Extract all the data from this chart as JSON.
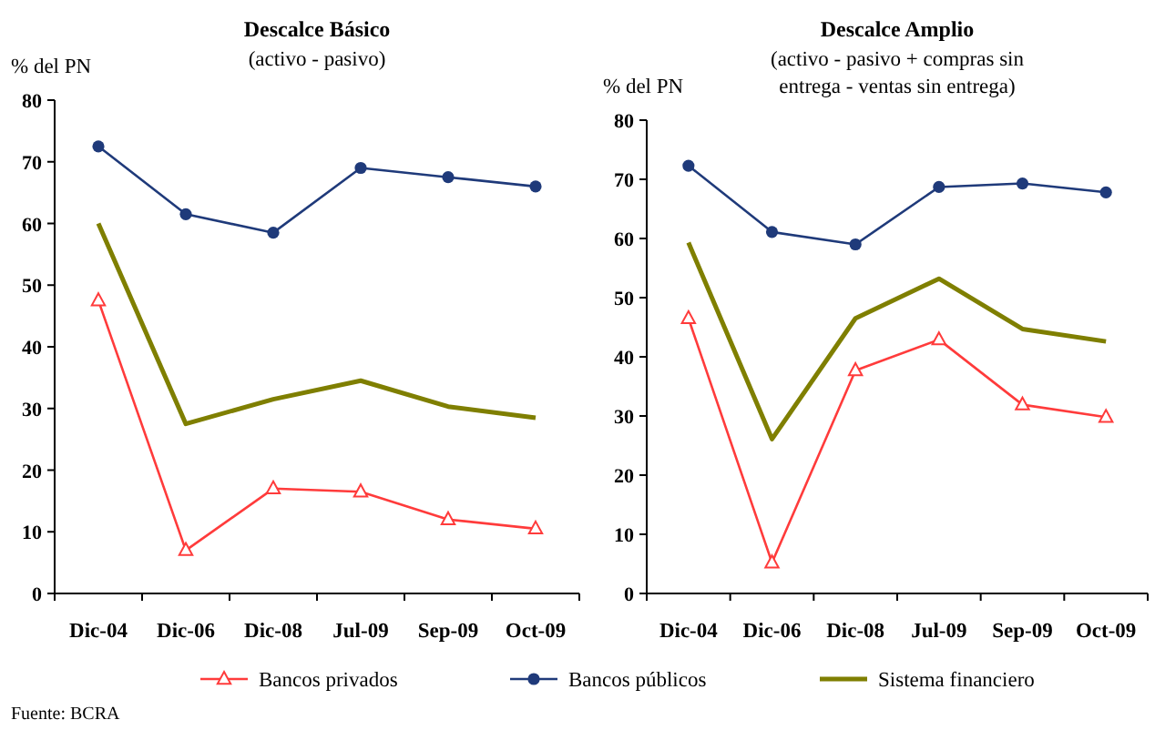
{
  "chart_data": [
    {
      "type": "line",
      "title": "Descalce Básico",
      "subtitle": "(activo - pasivo)",
      "ylabel": "% del PN",
      "categories": [
        "Dic-04",
        "Dic-06",
        "Dic-08",
        "Jul-09",
        "Sep-09",
        "Oct-09"
      ],
      "ylim": [
        0,
        80
      ],
      "yticks": [
        0,
        10,
        20,
        30,
        40,
        50,
        60,
        70,
        80
      ],
      "grid": false,
      "legend": "bottom",
      "annotations": [
        "Fuente: BCRA"
      ],
      "series": [
        {
          "name": "Bancos privados",
          "color": "#ff3b3b",
          "marker": "triangle",
          "values": [
            47.5,
            7,
            17,
            16.5,
            12,
            10.5
          ]
        },
        {
          "name": "Bancos públicos",
          "color": "#1f3a7a",
          "marker": "circle",
          "values": [
            72.5,
            61.5,
            58.5,
            69,
            67.5,
            66
          ]
        },
        {
          "name": "Sistema financiero",
          "color": "#7f7f00",
          "marker": "none",
          "values": [
            60,
            27.5,
            31.5,
            34.5,
            30.3,
            28.5
          ]
        }
      ]
    },
    {
      "type": "line",
      "title": "Descalce Amplio",
      "subtitle": "(activo - pasivo + compras sin entrega - ventas sin entrega)",
      "ylabel": "% del PN",
      "categories": [
        "Dic-04",
        "Dic-06",
        "Dic-08",
        "Jul-09",
        "Sep-09",
        "Oct-09"
      ],
      "ylim": [
        0,
        80
      ],
      "yticks": [
        0,
        10,
        20,
        30,
        40,
        50,
        60,
        70,
        80
      ],
      "grid": false,
      "legend": "bottom",
      "series": [
        {
          "name": "Bancos privados",
          "color": "#ff3b3b",
          "marker": "triangle",
          "values": [
            46.5,
            5.2,
            37.7,
            42.9,
            31.9,
            29.8
          ]
        },
        {
          "name": "Bancos públicos",
          "color": "#1f3a7a",
          "marker": "circle",
          "values": [
            72.3,
            61.1,
            59,
            68.7,
            69.3,
            67.8
          ]
        },
        {
          "name": "Sistema financiero",
          "color": "#7f7f00",
          "marker": "none",
          "values": [
            59.3,
            26.1,
            46.5,
            53.2,
            44.7,
            42.6
          ]
        }
      ]
    }
  ]
}
